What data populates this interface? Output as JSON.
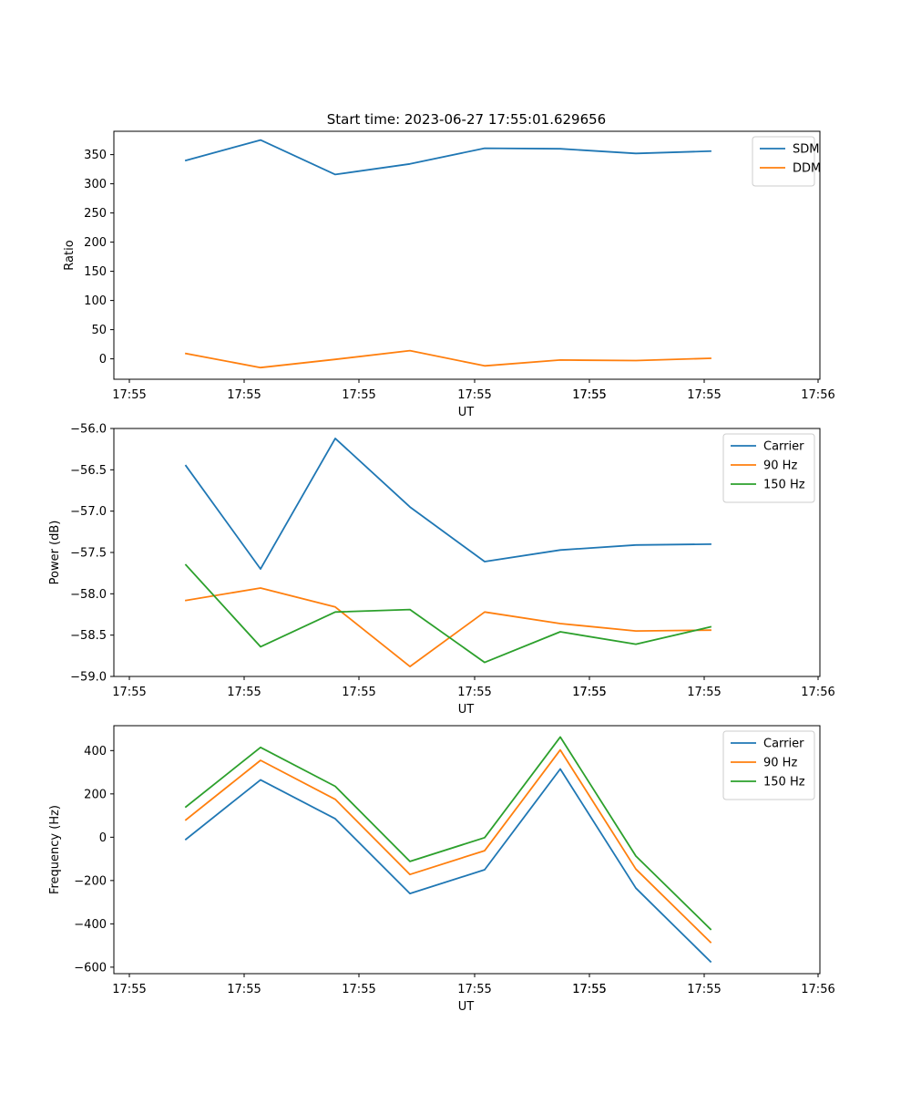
{
  "figure": {
    "title": "Start time: 2023-06-27 17:55:01.629656"
  },
  "chart_data": [
    {
      "type": "line",
      "xlabel": "UT",
      "ylabel": "Ratio",
      "xtick_labels": [
        "17:55",
        "17:55",
        "17:55",
        "17:55",
        "17:55",
        "17:55",
        "17:55",
        "17:56"
      ],
      "yticks": [
        0,
        50,
        100,
        150,
        200,
        250,
        300,
        350
      ],
      "ylim": [
        -35,
        390
      ],
      "grid": false,
      "legend": "top-right",
      "series": [
        {
          "name": "SDM",
          "color": "#1f77b4",
          "values": [
            340,
            375,
            316,
            334,
            361,
            360,
            352,
            356
          ]
        },
        {
          "name": "DDM",
          "color": "#ff7f0e",
          "values": [
            9,
            -15,
            -1,
            14,
            -12,
            -2,
            -3,
            1
          ]
        }
      ]
    },
    {
      "type": "line",
      "xlabel": "UT",
      "ylabel": "Power (dB)",
      "xtick_labels": [
        "17:55",
        "17:55",
        "17:55",
        "17:55",
        "17:55",
        "17:55",
        "17:55",
        "17:56"
      ],
      "yticks": [
        -59.0,
        -58.5,
        -58.0,
        -57.5,
        -57.0,
        -56.5,
        -56.0
      ],
      "ylim": [
        -59.0,
        -56.0
      ],
      "grid": false,
      "legend": "top-right",
      "series": [
        {
          "name": "Carrier",
          "color": "#1f77b4",
          "values": [
            -56.45,
            -57.7,
            -56.12,
            -56.95,
            -57.61,
            -57.47,
            -57.41,
            -57.4
          ]
        },
        {
          "name": "90 Hz",
          "color": "#ff7f0e",
          "values": [
            -58.08,
            -57.93,
            -58.16,
            -58.88,
            -58.22,
            -58.36,
            -58.45,
            -58.44
          ]
        },
        {
          "name": "150 Hz",
          "color": "#2ca02c",
          "values": [
            -57.65,
            -58.64,
            -58.22,
            -58.19,
            -58.83,
            -58.46,
            -58.61,
            -58.4
          ]
        }
      ]
    },
    {
      "type": "line",
      "xlabel": "UT",
      "ylabel": "Frequency (Hz)",
      "xtick_labels": [
        "17:55",
        "17:55",
        "17:55",
        "17:55",
        "17:55",
        "17:55",
        "17:55",
        "17:56"
      ],
      "yticks": [
        -600,
        -400,
        -200,
        0,
        200,
        400
      ],
      "ylim": [
        -630,
        515
      ],
      "grid": false,
      "legend": "top-right",
      "series": [
        {
          "name": "Carrier",
          "color": "#1f77b4",
          "values": [
            -10,
            265,
            85,
            -260,
            -150,
            315,
            -235,
            -575
          ]
        },
        {
          "name": "90 Hz",
          "color": "#ff7f0e",
          "values": [
            80,
            355,
            175,
            -172,
            -62,
            403,
            -147,
            -485
          ]
        },
        {
          "name": "150 Hz",
          "color": "#2ca02c",
          "values": [
            140,
            415,
            235,
            -112,
            -2,
            463,
            -87,
            -425
          ]
        }
      ]
    }
  ]
}
